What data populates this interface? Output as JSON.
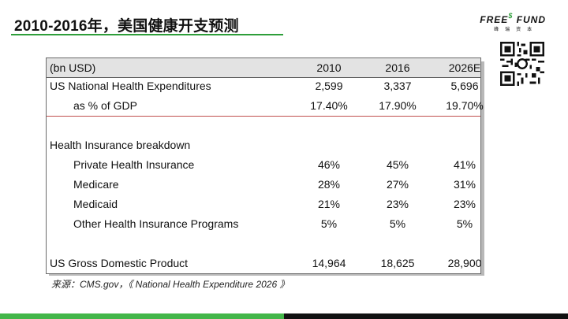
{
  "page": {
    "title": "2010-2016年，美国健康开支预测"
  },
  "logo": {
    "main_part1": "FREE",
    "dollar": "$",
    "main_part2": " FUND",
    "sub": "峰瑞资本"
  },
  "table": {
    "header": [
      "(bn USD)",
      "2010",
      "2016",
      "2026E"
    ],
    "rows": [
      {
        "label": "US National Health Expenditures",
        "indent": false,
        "values": [
          "2,599",
          "3,337",
          "5,696"
        ]
      },
      {
        "label": "as % of GDP",
        "indent": true,
        "values": [
          "17.40%",
          "17.90%",
          "19.70%"
        ]
      },
      {
        "label": "Health Insurance breakdown",
        "indent": false,
        "values": [
          "",
          "",
          ""
        ]
      },
      {
        "label": "Private Health Insurance",
        "indent": true,
        "values": [
          "46%",
          "45%",
          "41%"
        ]
      },
      {
        "label": "Medicare",
        "indent": true,
        "values": [
          "28%",
          "27%",
          "31%"
        ]
      },
      {
        "label": "Medicaid",
        "indent": true,
        "values": [
          "21%",
          "23%",
          "23%"
        ]
      },
      {
        "label": "Other Health Insurance Programs",
        "indent": true,
        "values": [
          "5%",
          "5%",
          "5%"
        ]
      },
      {
        "label": "US Gross Domestic Product",
        "indent": false,
        "values": [
          "14,964",
          "18,625",
          "28,900"
        ]
      }
    ]
  },
  "source": "来源：CMS.gov，《 National Health Expenditure 2026 》",
  "colors": {
    "accent_green": "#43b649",
    "title_underline": "#2e9e3a",
    "separator_red": "#c0504d",
    "header_bg": "#e3e3e3"
  }
}
